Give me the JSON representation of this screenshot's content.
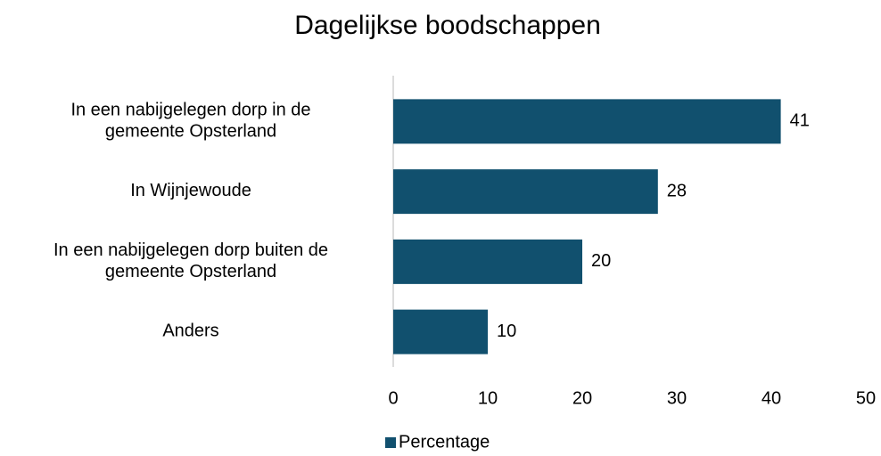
{
  "chart_data": {
    "type": "bar",
    "orientation": "horizontal",
    "title": "Dagelijkse boodschappen",
    "categories": [
      "In een nabijgelegen dorp in de\ngemeente Opsterland",
      "In Wijnjewoude",
      "In een nabijgelegen dorp buiten de\ngemeente Opsterland",
      "Anders"
    ],
    "series": [
      {
        "name": "Percentage",
        "color": "#11506e",
        "values": [
          41,
          28,
          20,
          10
        ]
      }
    ],
    "xlim": [
      0,
      50
    ],
    "xticks": [
      0,
      10,
      20,
      30,
      40,
      50
    ],
    "grid": false,
    "legend": "bottom",
    "data_labels": true
  }
}
